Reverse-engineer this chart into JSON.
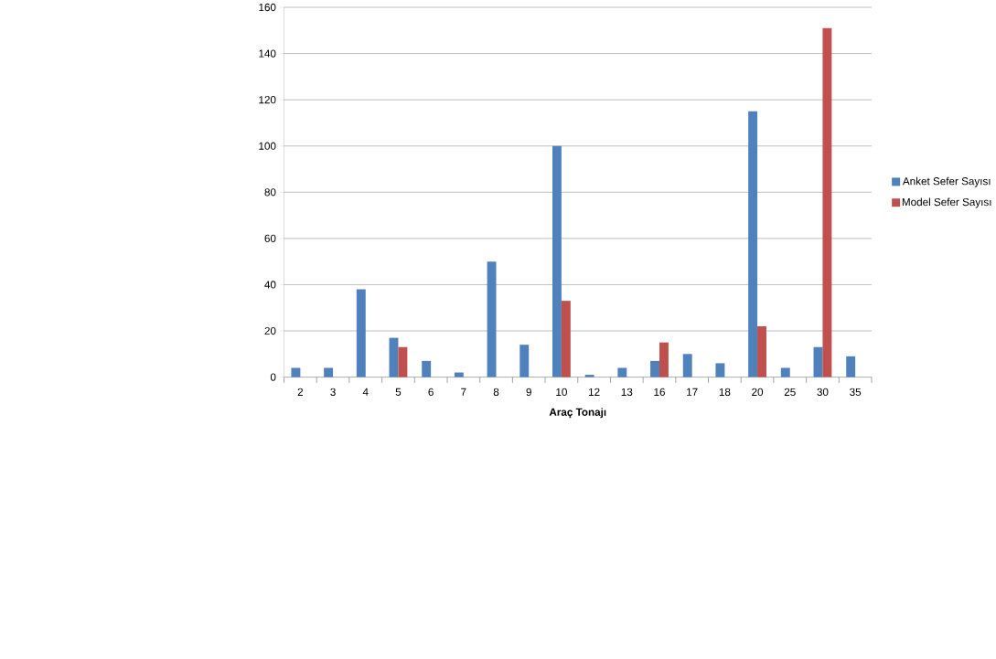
{
  "chart_data": {
    "type": "bar",
    "xlabel": "**Araç Tonajı**",
    "categories": [
      "2",
      "3",
      "4",
      "5",
      "6",
      "7",
      "8",
      "9",
      "10",
      "12",
      "13",
      "16",
      "17",
      "18",
      "20",
      "25",
      "30",
      "35"
    ],
    "series": [
      {
        "name": "Anket Sefer Sayısı",
        "color": "#4f81bd",
        "values": [
          4,
          4,
          38,
          17,
          7,
          2,
          50,
          14,
          100,
          1,
          4,
          7,
          10,
          6,
          115,
          4,
          13,
          9
        ]
      },
      {
        "name": "Model Sefer Sayısı",
        "color": "#c0504d",
        "values": [
          null,
          null,
          null,
          13,
          null,
          null,
          null,
          null,
          33,
          null,
          null,
          15,
          null,
          null,
          22,
          null,
          151,
          null
        ]
      }
    ],
    "ylim": [
      0,
      160
    ],
    "yticks": [
      0,
      20,
      40,
      60,
      80,
      100,
      120,
      140,
      160
    ],
    "grid": "y",
    "legend": "right"
  }
}
